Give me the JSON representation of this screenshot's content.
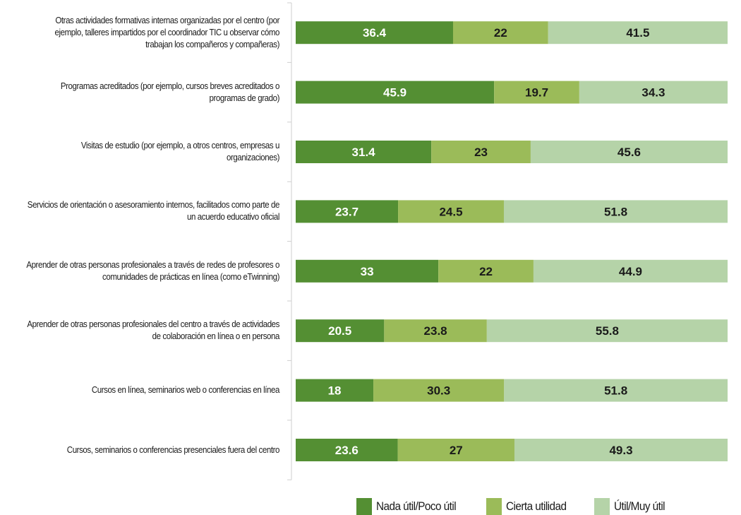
{
  "chart_data": {
    "type": "bar",
    "orientation": "horizontal",
    "stacked": true,
    "title": "",
    "xlabel": "",
    "ylabel": "",
    "xlim": [
      0,
      100
    ],
    "grid": false,
    "legend_position": "bottom",
    "categories": [
      "Otras actividades formativas internas organizadas por el centro (por ejemplo, talleres impartidos por el coordinador TIC u observar cómo trabajan los compañeros y compañeras)",
      "Programas acreditados (por ejemplo, cursos breves acreditados o programas de grado)",
      "Visitas de estudio (por ejemplo, a otros centros, empresas u organizaciones)",
      "Servicios de orientación o asesoramiento internos, facilitados como parte de un acuerdo educativo oficial",
      "Aprender de otras personas profesionales a través de redes de profesores o comunidades de prácticas en línea (como eTwinning)",
      "Aprender de otras personas profesionales del centro a través de actividades de colaboración en línea o en persona",
      "Cursos en línea, seminarios web o conferencias en línea",
      "Cursos, seminarios o conferencias presenciales fuera del centro"
    ],
    "series": [
      {
        "name": "Nada útil/Poco útil",
        "color": "#548f33",
        "label_color": "#ffffff",
        "values": [
          36.4,
          45.9,
          31.4,
          23.7,
          33,
          20.5,
          18,
          23.6
        ]
      },
      {
        "name": "Cierta utilidad",
        "color": "#9bbb59",
        "label_color": "#1a1a1a",
        "values": [
          22,
          19.7,
          23,
          24.5,
          22,
          23.8,
          30.3,
          27
        ]
      },
      {
        "name": "Útil/Muy útil",
        "color": "#b5d3a8",
        "label_color": "#1a1a1a",
        "values": [
          41.5,
          34.3,
          45.6,
          51.8,
          44.9,
          55.8,
          51.8,
          49.3
        ]
      }
    ]
  }
}
